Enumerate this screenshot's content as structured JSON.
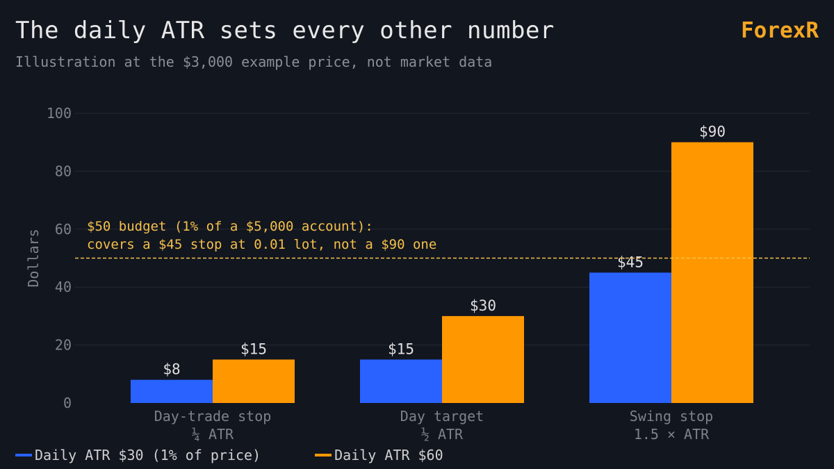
{
  "header": {
    "title": "The daily ATR sets every other number",
    "subtitle": "Illustration at the $3,000 example price, not market data",
    "brand": "ForexR"
  },
  "colors": {
    "background": "#12161f",
    "series_blue": "#2962ff",
    "series_orange": "#ff9800",
    "budget_line": "#f5c04a",
    "grid": "#232833",
    "tick_text": "#7d828c",
    "label_text": "#e0e0e0"
  },
  "chart_data": {
    "type": "bar",
    "categories": [
      "Day-trade stop",
      "Day target",
      "Swing stop"
    ],
    "category_sublabels": [
      "¼ ATR",
      "½ ATR",
      "1.5 × ATR"
    ],
    "series": [
      {
        "name": "Daily ATR $30 (1% of price)",
        "values": [
          8,
          15,
          45
        ],
        "labels": [
          "$8",
          "$15",
          "$45"
        ],
        "color": "#2962ff"
      },
      {
        "name": "Daily ATR $60",
        "values": [
          15,
          30,
          90
        ],
        "labels": [
          "$15",
          "$30",
          "$90"
        ],
        "color": "#ff9800"
      }
    ],
    "ylabel": "Dollars",
    "ylim": [
      0,
      100
    ],
    "yticks": [
      0,
      20,
      40,
      60,
      80,
      100
    ],
    "grid": true,
    "legend": "bottom-left",
    "reference_line": {
      "value": 50,
      "annotation": [
        "$50 budget (1% of a $5,000 account):",
        "covers a $45 stop at 0.01 lot, not a $90 one"
      ]
    }
  }
}
